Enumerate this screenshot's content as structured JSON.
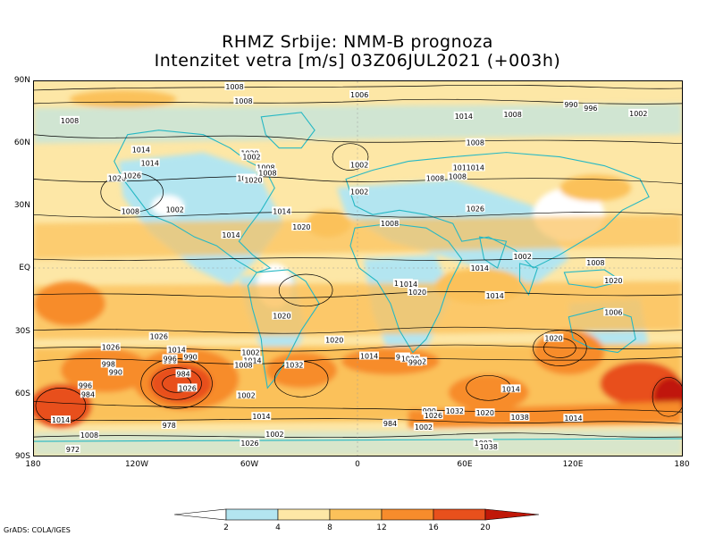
{
  "title": {
    "line1": "RHMZ Srbije: NMM-B prognoza",
    "line2": "Intenzitet vetra [m/s] 03Z06JUL2021 (+003h)"
  },
  "axes": {
    "lat_labels": [
      "90N",
      "60N",
      "30N",
      "EQ",
      "30S",
      "60S",
      "90S"
    ],
    "lon_labels": [
      "180",
      "120W",
      "60W",
      "0",
      "60E",
      "120E",
      "180"
    ]
  },
  "colorbar": {
    "levels": [
      "2",
      "4",
      "8",
      "12",
      "16",
      "20"
    ],
    "colors": [
      "#ffffff",
      "#b3e5f0",
      "#fde7a6",
      "#fbc15a",
      "#f78c2c",
      "#e8501c",
      "#c01808"
    ]
  },
  "credit": "GrADS: COLA/IGES",
  "isobar_labels": [
    "1002",
    "1008",
    "1006",
    "1014",
    "1008",
    "990",
    "996",
    "1002",
    "1008",
    "1014",
    "1008",
    "1014",
    "1020",
    "1002",
    "1008",
    "1020",
    "1002",
    "1002",
    "1008",
    "1014",
    "1026",
    "1020",
    "1008",
    "1026",
    "1002",
    "1002",
    "1014",
    "1020",
    "1014",
    "1008",
    "1008",
    "1008",
    "1014",
    "1002",
    "1014",
    "1008",
    "1014",
    "1020",
    "1014",
    "1020",
    "1008",
    "1020",
    "1026",
    "1026",
    "1020",
    "1020",
    "1006",
    "996",
    "1014",
    "1002",
    "1014",
    "1008",
    "1032",
    "990",
    "1014",
    "1002",
    "1020",
    "990",
    "996",
    "990",
    "984",
    "1026",
    "998",
    "990",
    "996",
    "984",
    "1014",
    "1002",
    "1002",
    "1026",
    "1014",
    "1008",
    "972",
    "978",
    "984",
    "990",
    "1032",
    "1026",
    "1002",
    "1014",
    "1020",
    "1002",
    "1038",
    "1038",
    "1014",
    "1008"
  ]
}
